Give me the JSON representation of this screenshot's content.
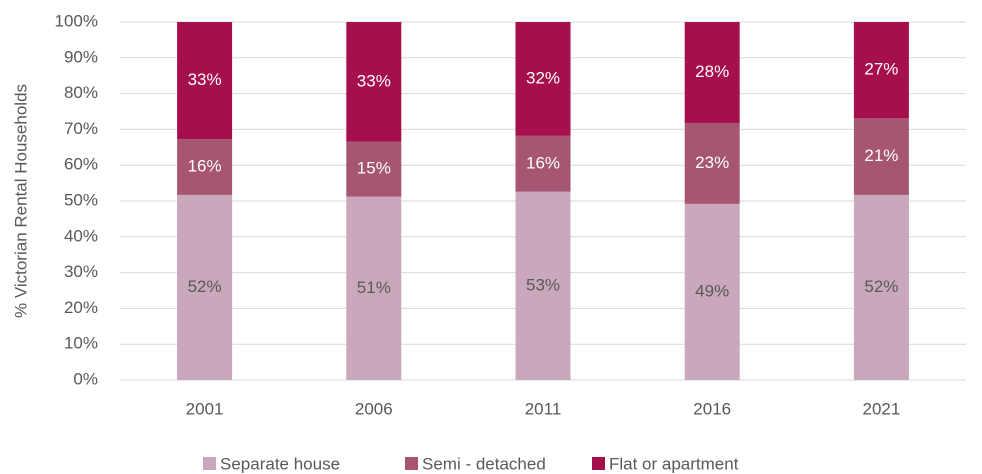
{
  "chart_data": {
    "type": "stacked_bar",
    "y_label": "% Victorian Rental Households",
    "categories": [
      "2001",
      "2006",
      "2011",
      "2016",
      "2021"
    ],
    "series": [
      {
        "name": "Separate house",
        "color": "#c9a8bb",
        "values": [
          51.7,
          51.2,
          52.6,
          49.2,
          51.7
        ],
        "value_labels": [
          "52%",
          "51%",
          "53%",
          "49%",
          "52%"
        ]
      },
      {
        "name": "Semi - detached",
        "color": "#a65573",
        "values": [
          15.6,
          15.4,
          15.6,
          22.6,
          21.4
        ],
        "value_labels": [
          "16%",
          "15%",
          "16%",
          "23%",
          "21%"
        ]
      },
      {
        "name": "Flat or apartment",
        "color": "#a50f4b",
        "values": [
          32.7,
          33.4,
          31.8,
          28.2,
          26.9
        ],
        "value_labels": [
          "33%",
          "33%",
          "32%",
          "28%",
          "27%"
        ]
      }
    ],
    "ylim": [
      0,
      100
    ],
    "yticks": [
      {
        "value": 0,
        "label": "0%"
      },
      {
        "value": 10,
        "label": "10%"
      },
      {
        "value": 20,
        "label": "20%"
      },
      {
        "value": 30,
        "label": "30%"
      },
      {
        "value": 40,
        "label": "40%"
      },
      {
        "value": 50,
        "label": "50%"
      },
      {
        "value": 60,
        "label": "60%"
      },
      {
        "value": 70,
        "label": "70%"
      },
      {
        "value": 80,
        "label": "80%"
      },
      {
        "value": 90,
        "label": "90%"
      },
      {
        "value": 100,
        "label": "100%"
      }
    ],
    "grid": true
  }
}
